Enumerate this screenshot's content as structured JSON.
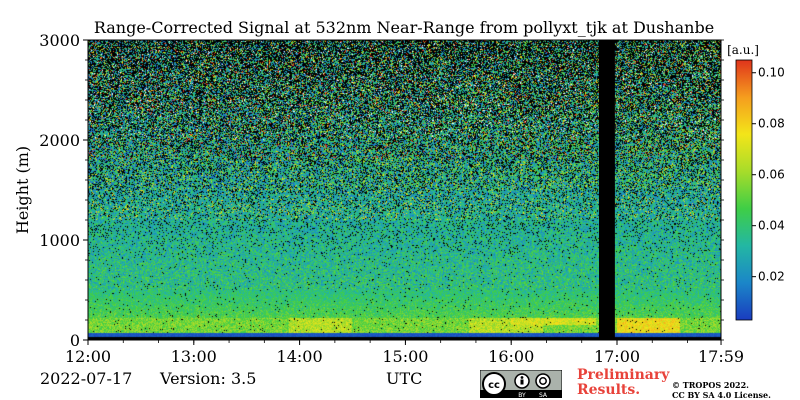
{
  "chart_data": {
    "type": "heatmap",
    "title": "Range-Corrected Signal at 532nm Near-Range from pollyxt_tjk at Dushanbe",
    "xlabel": "",
    "ylabel": "Height (m)",
    "x_ticks": [
      "12:00",
      "13:00",
      "14:00",
      "15:00",
      "16:00",
      "17:00",
      "17:59"
    ],
    "x_range_hours": [
      12.0,
      17.983
    ],
    "y_ticks": [
      0,
      1000,
      2000,
      3000
    ],
    "ylim": [
      0,
      3000
    ],
    "colorbar": {
      "label": "[a.u.]",
      "ticks": [
        "0.02",
        "0.04",
        "0.06",
        "0.08",
        "0.10"
      ],
      "range": [
        0.003,
        0.105
      ]
    },
    "data_gap_hours": [
      16.83,
      16.98
    ],
    "colors": {
      "colormap": [
        "#1a3cbf",
        "#1b86c8",
        "#23b7a3",
        "#3fce46",
        "#a7dc2a",
        "#f3e519",
        "#f59d1e",
        "#e0341c"
      ],
      "no_data": "#000000"
    }
  },
  "footer": {
    "date": "2022-07-17",
    "version": "Version: 3.5",
    "xunit": "UTC",
    "preliminary": [
      "Preliminary",
      "Results."
    ],
    "copyright": [
      "© TROPOS 2022.",
      "CC BY SA 4.0 License."
    ],
    "cc_labels": [
      "BY",
      "SA"
    ]
  }
}
